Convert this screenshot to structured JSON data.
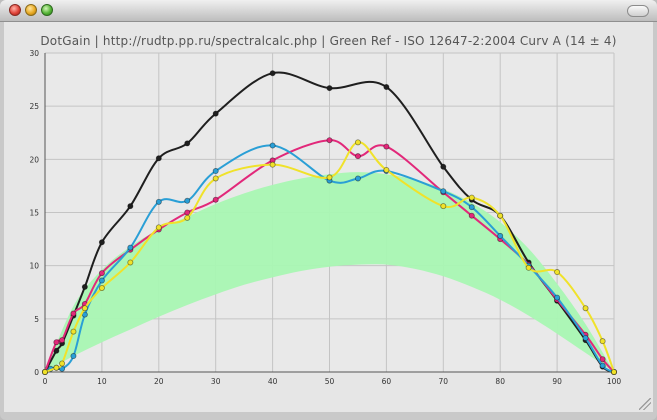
{
  "window": {
    "title": "DotGain | http://rudtp.pp.ru/spectralcalc.php | Green Ref - ISO 12647-2:2004 Curv A (14 ± 4)"
  },
  "chart_data": {
    "type": "line",
    "title": "DotGain | http://rudtp.pp.ru/spectralcalc.php | Green Ref - ISO 12647-2:2004 Curv A (14 ± 4)",
    "xlabel": "",
    "ylabel": "",
    "xlim": [
      0,
      100
    ],
    "ylim": [
      0,
      30
    ],
    "x_ticks": [
      0,
      10,
      20,
      30,
      40,
      50,
      60,
      70,
      80,
      90,
      100
    ],
    "y_ticks": [
      0,
      5,
      10,
      15,
      20,
      25,
      30
    ],
    "grid": true,
    "legend": "none",
    "tolerance_band": {
      "color": "#a9f7b3",
      "x": [
        0,
        5,
        10,
        15,
        20,
        25,
        30,
        35,
        40,
        45,
        50,
        55,
        60,
        65,
        70,
        75,
        80,
        85,
        90,
        95,
        100
      ],
      "upper": [
        0,
        6.2,
        9.6,
        11.8,
        13.4,
        14.6,
        15.8,
        16.8,
        17.6,
        18.2,
        18.6,
        18.8,
        18.6,
        18.1,
        17.2,
        15.9,
        14.1,
        11.6,
        8.3,
        4.5,
        0
      ],
      "lower": [
        0,
        1.5,
        2.8,
        4.0,
        5.2,
        6.3,
        7.3,
        8.2,
        8.9,
        9.5,
        9.9,
        10.1,
        10.1,
        9.7,
        9.0,
        8.0,
        6.8,
        5.3,
        3.6,
        1.8,
        0
      ]
    },
    "series": [
      {
        "color": "#1f1f1f",
        "x": [
          0,
          2,
          3,
          5,
          7,
          10,
          15,
          20,
          25,
          30,
          40,
          50,
          60,
          70,
          75,
          80,
          85,
          90,
          95,
          98,
          100
        ],
        "values": [
          0,
          2.0,
          2.7,
          5.3,
          8.0,
          12.2,
          15.6,
          20.1,
          21.5,
          24.3,
          28.1,
          26.7,
          26.8,
          19.3,
          16.2,
          14.7,
          10.3,
          6.7,
          3.0,
          0.5,
          0
        ]
      },
      {
        "color": "#e2287a",
        "x": [
          0,
          2,
          3,
          5,
          7,
          10,
          15,
          20,
          25,
          30,
          40,
          50,
          55,
          60,
          70,
          75,
          80,
          85,
          90,
          95,
          98,
          100
        ],
        "values": [
          0,
          2.8,
          3.0,
          5.5,
          6.4,
          9.3,
          11.5,
          13.4,
          15.0,
          16.2,
          19.9,
          21.8,
          20.3,
          21.2,
          16.9,
          14.7,
          12.5,
          10.1,
          6.8,
          3.5,
          1.2,
          0
        ]
      },
      {
        "color": "#2a9fd6",
        "x": [
          0,
          1,
          2,
          3,
          5,
          7,
          10,
          15,
          20,
          25,
          30,
          40,
          50,
          55,
          60,
          70,
          75,
          80,
          85,
          90,
          95,
          98,
          100
        ],
        "values": [
          0,
          0.3,
          0.4,
          0.3,
          1.5,
          5.4,
          8.6,
          11.7,
          16.0,
          16.1,
          18.9,
          21.3,
          18.0,
          18.2,
          18.9,
          17.0,
          15.5,
          12.8,
          10.0,
          7.0,
          3.2,
          0.6,
          0
        ]
      },
      {
        "color": "#f0e22a",
        "x": [
          0,
          2,
          3,
          5,
          7,
          10,
          15,
          20,
          25,
          30,
          40,
          50,
          55,
          60,
          70,
          75,
          80,
          85,
          90,
          95,
          98,
          100
        ],
        "values": [
          0,
          0.4,
          0.8,
          3.8,
          6.0,
          7.9,
          10.3,
          13.6,
          14.5,
          18.2,
          19.5,
          18.3,
          21.6,
          19.0,
          15.6,
          16.4,
          14.7,
          9.8,
          9.4,
          6.0,
          2.9,
          0
        ]
      }
    ]
  }
}
